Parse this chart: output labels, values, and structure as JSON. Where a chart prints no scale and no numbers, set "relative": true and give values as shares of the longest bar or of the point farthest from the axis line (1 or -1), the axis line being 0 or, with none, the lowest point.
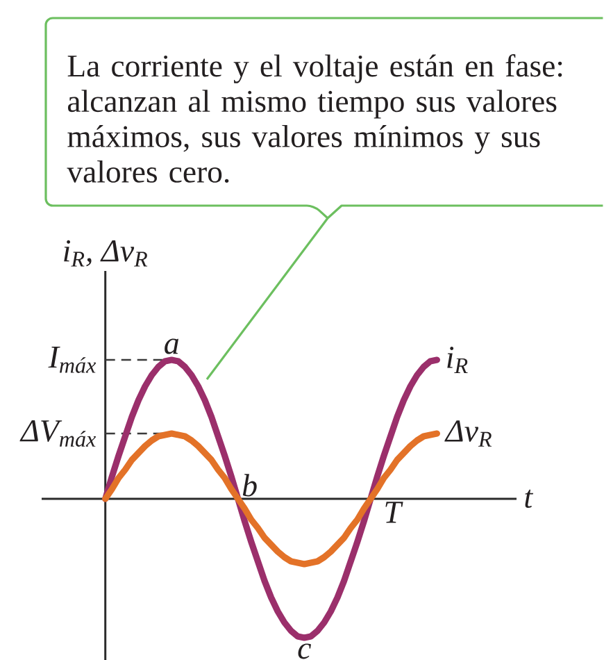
{
  "chart_data": {
    "type": "line",
    "relative": true,
    "xlabel": "t",
    "ylabel": "i$_{R}$, Δv$_{R}$",
    "categories": [
      null,
      null,
      null,
      null,
      null,
      null,
      null,
      null,
      null,
      null,
      null,
      null,
      null,
      null,
      null,
      null,
      null,
      null,
      null,
      null,
      null,
      null,
      null,
      null,
      null,
      null,
      null,
      null,
      null,
      null,
      null,
      null,
      null,
      null,
      null,
      null,
      null,
      null,
      null,
      null,
      null,
      null,
      null,
      null,
      null,
      null,
      null,
      null,
      null,
      null,
      null
    ],
    "series": [
      {
        "name": "i$_{R}$",
        "color": "#9b2f6b",
        "values": [
          0,
          0.16,
          0.31,
          0.45,
          0.59,
          0.71,
          0.81,
          0.89,
          0.95,
          0.99,
          1,
          0.99,
          0.95,
          0.89,
          0.81,
          0.71,
          0.59,
          0.45,
          0.31,
          0.16,
          0,
          -0.16,
          -0.31,
          -0.45,
          -0.59,
          -0.71,
          -0.81,
          -0.89,
          -0.95,
          -0.99,
          -1,
          -0.99,
          -0.95,
          -0.89,
          -0.81,
          -0.71,
          -0.59,
          -0.45,
          -0.31,
          -0.16,
          0,
          0.16,
          0.31,
          0.45,
          0.59,
          0.71,
          0.81,
          0.89,
          0.95,
          0.99,
          1
        ]
      },
      {
        "name": "Δv$_{R}$",
        "color": "#e37228",
        "values": [
          0,
          0.07,
          0.15,
          0.21,
          0.28,
          0.33,
          0.38,
          0.42,
          0.45,
          0.46,
          0.47,
          0.46,
          0.45,
          0.42,
          0.38,
          0.33,
          0.28,
          0.21,
          0.15,
          0.07,
          0,
          -0.07,
          -0.15,
          -0.21,
          -0.28,
          -0.33,
          -0.38,
          -0.42,
          -0.45,
          -0.46,
          -0.47,
          -0.46,
          -0.45,
          -0.42,
          -0.38,
          -0.33,
          -0.28,
          -0.21,
          -0.15,
          -0.07,
          0,
          0.07,
          0.15,
          0.21,
          0.28,
          0.33,
          0.38,
          0.42,
          0.45,
          0.46,
          0.47
        ]
      }
    ],
    "ref_lines": [
      {
        "axis": "y",
        "value": 1,
        "label": "I$_{máx}$",
        "line_style": "dashed",
        "color": "#3b3b3b"
      },
      {
        "axis": "y",
        "value": 0.47,
        "label": "ΔV$_{máx}$",
        "line_style": "dashed",
        "color": "#3b3b3b"
      }
    ],
    "annotations": [
      "La corriente y el voltaje están en fase: alcanzan al mismo tiempo sus valores máximos, sus valores mínimos y sus valores cero.",
      {
        "text": "a",
        "y": 1
      },
      {
        "text": "b",
        "y": 0
      },
      {
        "text": "c",
        "y": -1
      },
      "T"
    ]
  }
}
